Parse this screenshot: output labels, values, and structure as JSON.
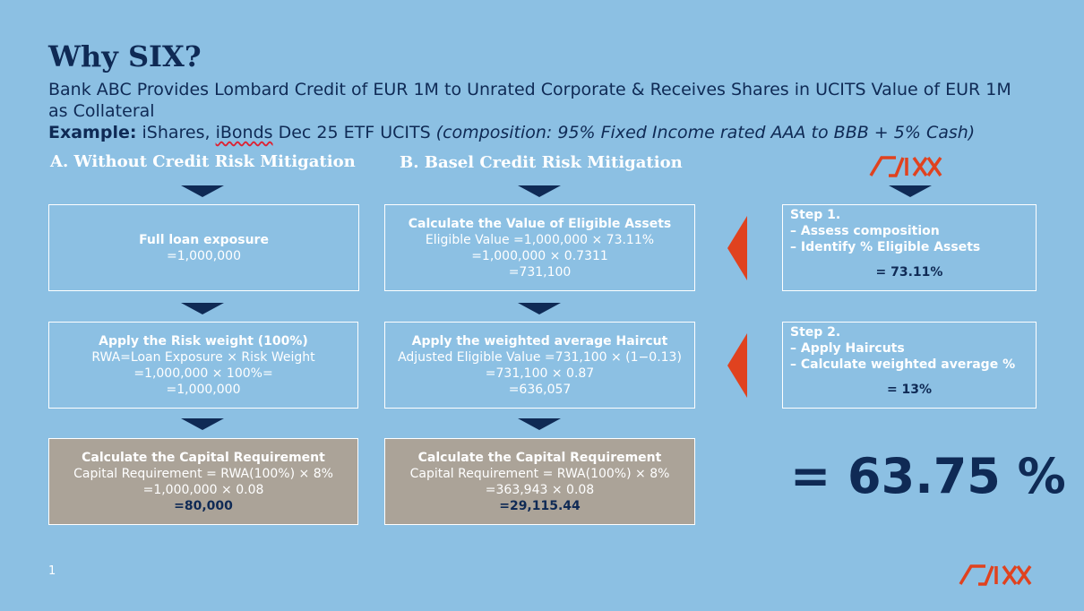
{
  "title": "Why SIX?",
  "subtitle": "Bank ABC Provides Lombard Credit of EUR 1M to Unrated Corporate & Receives Shares in UCITS Value of EUR 1M as Collateral",
  "example": {
    "label": "Example:",
    "text_a": " iShares, ",
    "text_b": "iBonds",
    "text_c": " Dec 25 ETF UCITS ",
    "composition": "(composition: 95% Fixed Income rated AAA to BBB + 5% Cash)"
  },
  "columns": {
    "a": {
      "heading": "A. Without Credit Risk Mitigation",
      "box1": {
        "title": "Full loan exposure",
        "lines": [
          "=1,000,000"
        ]
      },
      "box2": {
        "title": "Apply  the Risk weight (100%)",
        "lines": [
          "RWA=Loan Exposure × Risk Weight",
          "=1,000,000 × 100%=",
          "=1,000,000"
        ]
      },
      "box3": {
        "title": "Calculate the Capital Requirement",
        "lines": [
          "Capital Requirement = RWA(100%) × 8%",
          "=1,000,000 × 0.08"
        ],
        "result": "=80,000"
      }
    },
    "b": {
      "heading": "B. Basel Credit Risk Mitigation",
      "box1": {
        "title": "Calculate the Value of Eligible Assets",
        "lines": [
          "Eligible Value =1,000,000 × 73.11%",
          "=1,000,000 × 0.7311",
          "=731,100"
        ]
      },
      "box2": {
        "title": "Apply  the weighted average Haircut",
        "lines": [
          "Adjusted Eligible Value =731,100 × (1−0.13)",
          "=731,100 × 0.87",
          "=636,057"
        ]
      },
      "box3": {
        "title": "Calculate the Capital Requirement",
        "lines": [
          "Capital Requirement = RWA(100%) × 8%",
          "=363,943 × 0.08"
        ],
        "result": "=29,115.44"
      }
    }
  },
  "steps": [
    {
      "label": "Step 1.",
      "items": [
        "– Assess composition",
        "– Identify % Eligible Assets"
      ],
      "result": "= 73.11%"
    },
    {
      "label": "Step 2.",
      "items": [
        "– Apply  Haircuts",
        "– Calculate weighted average %"
      ],
      "result": "= 13%"
    }
  ],
  "big_result": "= 63.75 %",
  "page_number": "1",
  "logo_text": "SIX",
  "colors": {
    "background": "#8cc0e3",
    "navy": "#0f2a55",
    "grey_box": "#aba398",
    "accent_red": "#e0421f",
    "white": "#ffffff"
  }
}
